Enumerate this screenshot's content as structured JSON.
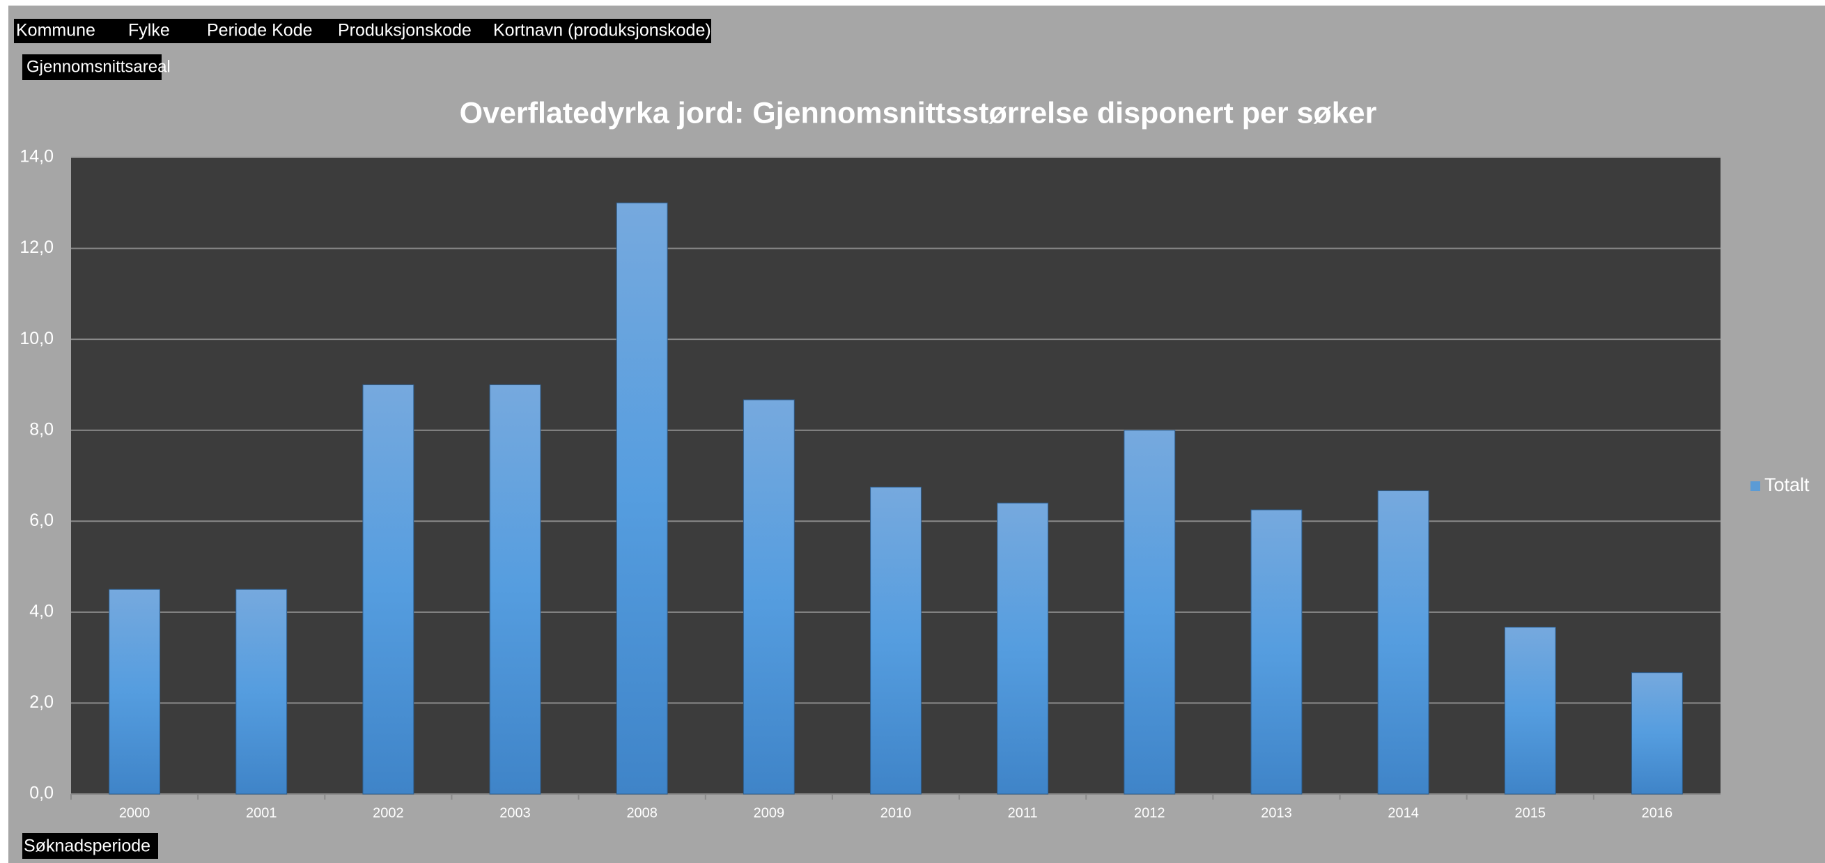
{
  "chart_data": {
    "type": "bar",
    "title": "Overflatedyrka jord: Gjennomsnittsstørrelse disponert per søker",
    "filter_fields": [
      "Kommune",
      "Fylke",
      "Periode Kode",
      "Produksjonskode",
      "Kortnavn (produksjonskode)"
    ],
    "value_field": "Gjennomsnittsareal",
    "axis_field": "Søknadsperiode",
    "categories": [
      "2000",
      "2001",
      "2002",
      "2003",
      "2008",
      "2009",
      "2010",
      "2011",
      "2012",
      "2013",
      "2014",
      "2015",
      "2016"
    ],
    "series": [
      {
        "name": "Totalt",
        "color": "#5b9bd5",
        "values": [
          4.5,
          4.5,
          9.0,
          9.0,
          13.0,
          8.67,
          6.75,
          6.4,
          8.0,
          6.25,
          6.67,
          3.67,
          2.67
        ]
      }
    ],
    "ylim": [
      0,
      14
    ],
    "yticks": [
      {
        "value": 0,
        "label": "0,0"
      },
      {
        "value": 2,
        "label": "2,0"
      },
      {
        "value": 4,
        "label": "4,0"
      },
      {
        "value": 6,
        "label": "6,0"
      },
      {
        "value": 8,
        "label": "8,0"
      },
      {
        "value": 10,
        "label": "10,0"
      },
      {
        "value": 12,
        "label": "12,0"
      },
      {
        "value": 14,
        "label": "14,0"
      }
    ],
    "grid": true,
    "legend": "right"
  }
}
